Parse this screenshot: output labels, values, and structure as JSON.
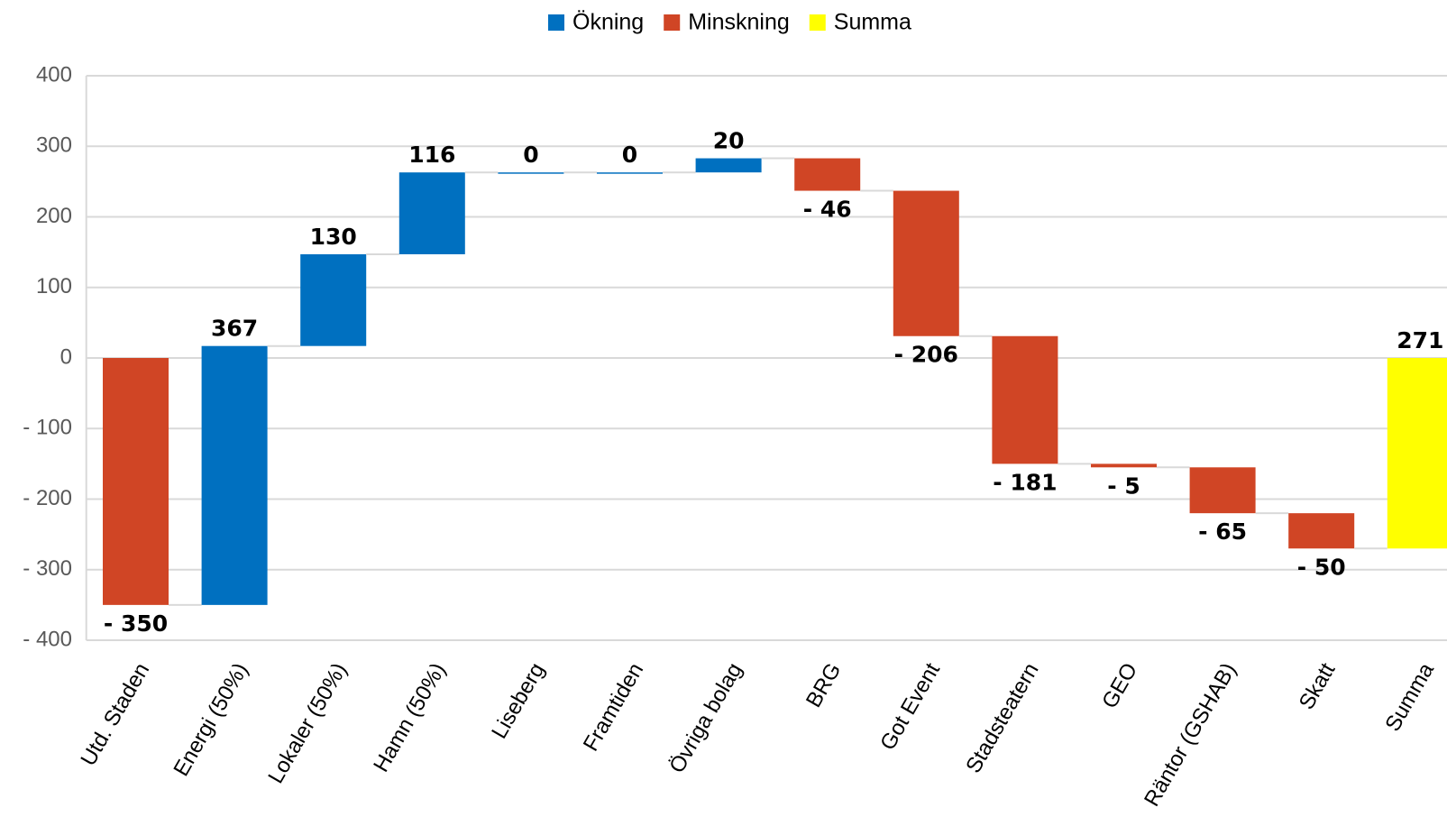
{
  "chart_data": {
    "type": "waterfall",
    "categories": [
      "Utd. Staden",
      "Energi (50%)",
      "Lokaler (50%)",
      "Hamn (50%)",
      "Liseberg",
      "Framtiden",
      "Övriga bolag",
      "BRG",
      "Got Event",
      "Stadsteatern",
      "GEO",
      "Räntor (GSHAB)",
      "Skatt",
      "Summa"
    ],
    "series": [
      {
        "name": "Ökning",
        "color": "#0070c0",
        "values": [
          null,
          367,
          130,
          116,
          0,
          0,
          20,
          null,
          null,
          null,
          null,
          null,
          null,
          null
        ]
      },
      {
        "name": "Minskning",
        "color": "#d04525",
        "values": [
          -350,
          null,
          null,
          null,
          null,
          null,
          null,
          -46,
          -206,
          -181,
          -5,
          -65,
          -50,
          null
        ],
        "value_labels": [
          "- 350",
          null,
          null,
          null,
          null,
          null,
          null,
          "- 46",
          "- 206",
          "- 181",
          "- 5",
          "- 65",
          "- 50",
          null
        ]
      },
      {
        "name": "Summa",
        "color": "#ffff00",
        "values": [
          null,
          null,
          null,
          null,
          null,
          null,
          null,
          null,
          null,
          null,
          null,
          null,
          null,
          271
        ]
      }
    ],
    "ylim": [
      -400,
      400
    ],
    "yticks": [
      400,
      300,
      200,
      100,
      0,
      {
        "value": -100,
        "label": "- 100"
      },
      {
        "value": -200,
        "label": "- 200"
      },
      {
        "value": -300,
        "label": "- 300"
      },
      {
        "value": -400,
        "label": "- 400"
      }
    ],
    "grid": true,
    "legend": "top"
  }
}
